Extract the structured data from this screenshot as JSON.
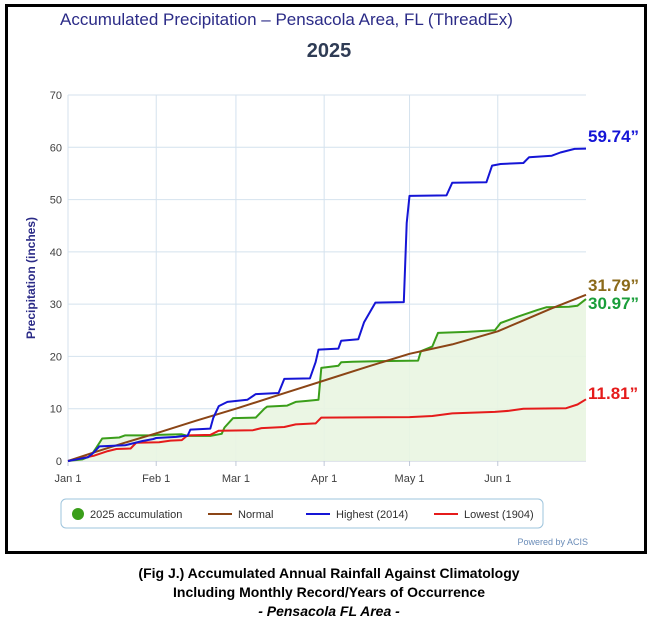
{
  "chart_data": {
    "type": "line",
    "title": "Accumulated Precipitation – Pensacola Area, FL (ThreadEx)",
    "subtitle": "2025",
    "ylabel": "Precipitation (inches)",
    "xlabel": "",
    "ylim": [
      0,
      70
    ],
    "yticks": [
      "0",
      "10",
      "20",
      "30",
      "40",
      "50",
      "60",
      "70"
    ],
    "xticks": [
      {
        "label": "Jan 1",
        "day": 0
      },
      {
        "label": "Feb 1",
        "day": 31
      },
      {
        "label": "Mar 1",
        "day": 59
      },
      {
        "label": "Apr 1",
        "day": 90
      },
      {
        "label": "May 1",
        "day": 120
      },
      {
        "label": "Jun 1",
        "day": 151
      }
    ],
    "x_range_days": [
      0,
      182
    ],
    "grid": true,
    "legend_position": "bottom",
    "credit": "Powered by ACIS",
    "series": [
      {
        "name": "2025 accumulation",
        "color": "#3a9e1a",
        "area": true,
        "points": [
          [
            0,
            0
          ],
          [
            5,
            0.3
          ],
          [
            8,
            1.0
          ],
          [
            10,
            2.6
          ],
          [
            12,
            4.3
          ],
          [
            18,
            4.5
          ],
          [
            20,
            4.9
          ],
          [
            30,
            4.9
          ],
          [
            31,
            5.0
          ],
          [
            40,
            5.1
          ],
          [
            42,
            4.8
          ],
          [
            50,
            4.8
          ],
          [
            54,
            5.2
          ],
          [
            55,
            6.4
          ],
          [
            58,
            8.2
          ],
          [
            66,
            8.3
          ],
          [
            69,
            10.0
          ],
          [
            70,
            10.4
          ],
          [
            77,
            10.6
          ],
          [
            80,
            11.3
          ],
          [
            84,
            11.5
          ],
          [
            88,
            11.7
          ],
          [
            89,
            17.8
          ],
          [
            95,
            18.2
          ],
          [
            96,
            18.9
          ],
          [
            100,
            19.0
          ],
          [
            110,
            19.1
          ],
          [
            123,
            19.2
          ],
          [
            124,
            21.0
          ],
          [
            128,
            21.9
          ],
          [
            130,
            24.5
          ],
          [
            140,
            24.7
          ],
          [
            150,
            25.0
          ],
          [
            152,
            26.4
          ],
          [
            158,
            27.6
          ],
          [
            165,
            28.9
          ],
          [
            168,
            29.4
          ],
          [
            176,
            29.5
          ],
          [
            179,
            29.7
          ],
          [
            182,
            30.97
          ]
        ]
      },
      {
        "name": "Normal",
        "color": "#8b4516",
        "area": false,
        "points": [
          [
            0,
            0
          ],
          [
            10,
            1.8
          ],
          [
            20,
            3.5
          ],
          [
            31,
            5.3
          ],
          [
            45,
            7.7
          ],
          [
            59,
            10.0
          ],
          [
            75,
            12.8
          ],
          [
            90,
            15.4
          ],
          [
            105,
            18.0
          ],
          [
            120,
            20.5
          ],
          [
            135,
            22.3
          ],
          [
            151,
            24.8
          ],
          [
            160,
            26.9
          ],
          [
            170,
            29.2
          ],
          [
            182,
            31.79
          ]
        ]
      },
      {
        "name": "Highest (2014)",
        "color": "#1515d6",
        "area": false,
        "points": [
          [
            0,
            0
          ],
          [
            7,
            0.7
          ],
          [
            9,
            1.6
          ],
          [
            11,
            2.8
          ],
          [
            20,
            3.0
          ],
          [
            26,
            3.8
          ],
          [
            30,
            4.2
          ],
          [
            31,
            4.4
          ],
          [
            38,
            4.6
          ],
          [
            41,
            4.8
          ],
          [
            42,
            4.8
          ],
          [
            43,
            6.0
          ],
          [
            50,
            6.2
          ],
          [
            51,
            8.2
          ],
          [
            53,
            10.5
          ],
          [
            56,
            11.3
          ],
          [
            63,
            11.7
          ],
          [
            66,
            12.8
          ],
          [
            74,
            13.0
          ],
          [
            76,
            15.7
          ],
          [
            85,
            15.8
          ],
          [
            87,
            18.9
          ],
          [
            88,
            21.3
          ],
          [
            95,
            21.5
          ],
          [
            96,
            23.0
          ],
          [
            102,
            23.3
          ],
          [
            104,
            26.5
          ],
          [
            106,
            28.4
          ],
          [
            108,
            30.3
          ],
          [
            118,
            30.4
          ],
          [
            119,
            45.5
          ],
          [
            120,
            50.7
          ],
          [
            133,
            50.8
          ],
          [
            135,
            53.2
          ],
          [
            147,
            53.3
          ],
          [
            149,
            56.5
          ],
          [
            152,
            56.8
          ],
          [
            160,
            57.0
          ],
          [
            162,
            58.1
          ],
          [
            170,
            58.4
          ],
          [
            173,
            59.0
          ],
          [
            178,
            59.7
          ],
          [
            182,
            59.74
          ]
        ]
      },
      {
        "name": "Lowest (1904)",
        "color": "#e51b1b",
        "area": false,
        "points": [
          [
            0,
            0
          ],
          [
            9,
            1.0
          ],
          [
            14,
            1.9
          ],
          [
            17,
            2.3
          ],
          [
            22,
            2.4
          ],
          [
            24,
            3.5
          ],
          [
            32,
            3.6
          ],
          [
            36,
            3.9
          ],
          [
            40,
            4.0
          ],
          [
            42,
            4.9
          ],
          [
            50,
            5.0
          ],
          [
            53,
            5.8
          ],
          [
            65,
            5.9
          ],
          [
            68,
            6.3
          ],
          [
            76,
            6.5
          ],
          [
            80,
            7.0
          ],
          [
            87,
            7.2
          ],
          [
            89,
            8.3
          ],
          [
            120,
            8.4
          ],
          [
            128,
            8.6
          ],
          [
            135,
            9.1
          ],
          [
            150,
            9.4
          ],
          [
            155,
            9.6
          ],
          [
            160,
            10.0
          ],
          [
            175,
            10.1
          ],
          [
            179,
            10.8
          ],
          [
            182,
            11.81
          ]
        ]
      }
    ],
    "end_labels": [
      {
        "text": "59.74”",
        "color": "#1515d6",
        "value": 59.74
      },
      {
        "text": "31.79”",
        "color": "#8b6a1a",
        "value": 31.79
      },
      {
        "text": "30.97”",
        "color": "#1a9e3a",
        "value": 30.97
      },
      {
        "text": "11.81”",
        "color": "#e51b1b",
        "value": 11.81
      }
    ]
  },
  "caption": {
    "line1": "(Fig J.) Accumulated Annual Rainfall Against  Climatology",
    "line2": "Including Monthly Record/Years of Occurrence",
    "line3": "- Pensacola FL Area -"
  }
}
